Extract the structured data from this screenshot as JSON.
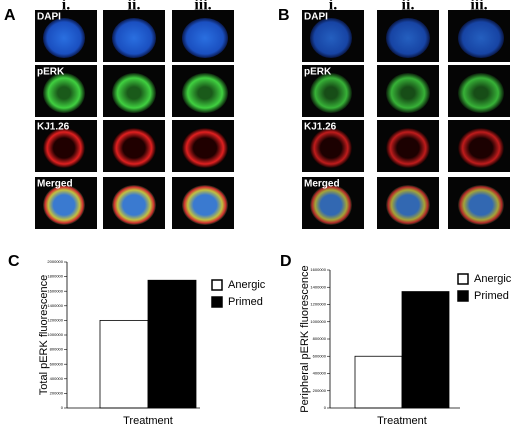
{
  "panels": [
    {
      "label": "A",
      "columns": [
        "i.",
        "ii.",
        "iii."
      ],
      "rows": [
        "DAPI",
        "pERK",
        "KJ1.26",
        "Merged"
      ]
    },
    {
      "label": "B",
      "columns": [
        "i.",
        "ii.",
        "iii."
      ],
      "rows": [
        "DAPI",
        "pERK",
        "KJ1.26",
        "Merged"
      ]
    }
  ],
  "chart_data": [
    {
      "type": "bar",
      "label": "C",
      "ylabel": "Total pERK fluorescence",
      "xlabel": "Treatment",
      "series": [
        {
          "name": "Anergic",
          "color": "#ffffff",
          "values": [
            1200000
          ]
        },
        {
          "name": "Primed",
          "color": "#000000",
          "values": [
            1750000
          ]
        }
      ],
      "ylim": [
        0,
        2000000
      ],
      "yticks": [
        0,
        200000,
        400000,
        600000,
        800000,
        1000000,
        1200000,
        1400000,
        1600000,
        1800000,
        2000000
      ],
      "legend": "right"
    },
    {
      "type": "bar",
      "label": "D",
      "ylabel": "Peripheral pERK fluorescence",
      "xlabel": "Treatment",
      "series": [
        {
          "name": "Anergic",
          "color": "#ffffff",
          "values": [
            600000
          ]
        },
        {
          "name": "Primed",
          "color": "#000000",
          "values": [
            1350000
          ]
        }
      ],
      "ylim": [
        0,
        1600000
      ],
      "yticks": [
        0,
        200000,
        400000,
        600000,
        800000,
        1000000,
        1200000,
        1400000,
        1600000
      ],
      "legend": "right"
    }
  ]
}
